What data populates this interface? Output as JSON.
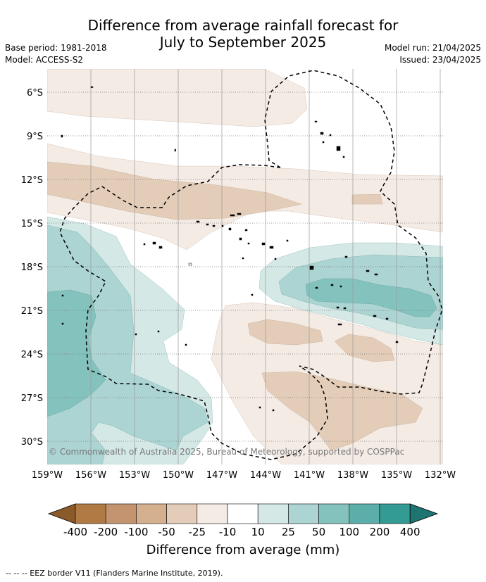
{
  "title_line1": "Difference from average rainfall forecast for",
  "title_line2": "July to September 2025",
  "left_meta": {
    "base_period": "Base period: 1981-2018",
    "model": "Model: ACCESS-S2"
  },
  "right_meta": {
    "model_run": "Model run: 21/04/2025",
    "issued": "Issued: 23/04/2025"
  },
  "map": {
    "lat_labels": [
      "6°S",
      "9°S",
      "12°S",
      "15°S",
      "18°S",
      "21°S",
      "24°S",
      "27°S",
      "30°S"
    ],
    "lon_labels": [
      "159°W",
      "156°W",
      "153°W",
      "150°W",
      "147°W",
      "144°W",
      "141°W",
      "138°W",
      "135°W",
      "132°W"
    ],
    "copyright": "© Commonwealth of Australia 2025, Bureau of Meteorology, supported by COSPPac"
  },
  "colorbar": {
    "labels": [
      "-400",
      "-200",
      "-100",
      "-50",
      "-25",
      "-10",
      "10",
      "25",
      "50",
      "100",
      "200",
      "400"
    ],
    "colors": [
      "#8c5a2a",
      "#b07a44",
      "#c49470",
      "#d4b08e",
      "#e4cdb8",
      "#f4ebe5",
      "#ffffff",
      "#d4e8e6",
      "#acd4d2",
      "#84c2be",
      "#5caeaa",
      "#349a94",
      "#1e7470"
    ],
    "title": "Difference from average (mm)"
  },
  "footnote": "--  --  -- EEZ border V11 (Flanders Marine Institute, 2019)."
}
